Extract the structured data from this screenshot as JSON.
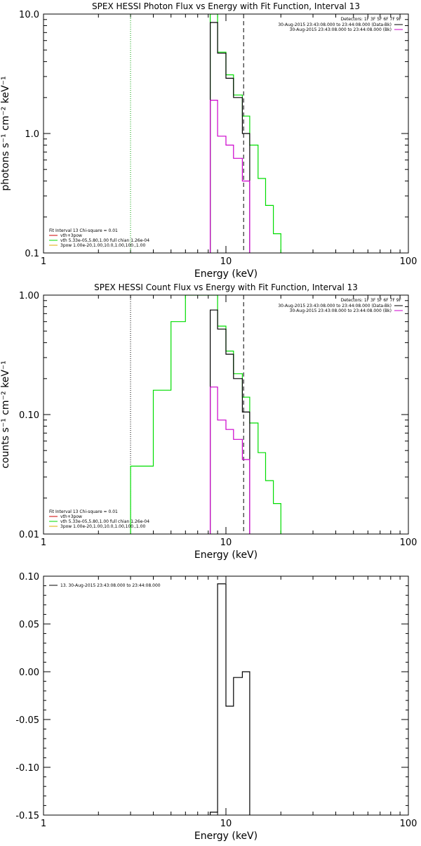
{
  "chart_data": [
    {
      "type": "line",
      "title": "SPEX HESSI Photon Flux vs Energy with Fit Function, Interval 13",
      "xlabel": "Energy (keV)",
      "ylabel": "photons s⁻¹ cm⁻² keV⁻¹",
      "xscale": "log",
      "yscale": "log",
      "xlim": [
        1,
        100
      ],
      "ylim": [
        0.1,
        10
      ],
      "xticks": [
        {
          "v": 1,
          "label": "1"
        },
        {
          "v": 10,
          "label": "10"
        },
        {
          "v": 100,
          "label": "100"
        }
      ],
      "yticks": [
        {
          "v": 0.1,
          "label": "0.1"
        },
        {
          "v": 1,
          "label": "1.0"
        },
        {
          "v": 10,
          "label": "10.0"
        }
      ],
      "vline_dotted": 3.0,
      "vline_dotted_color": "#00a000",
      "vline_dashed": 12.5,
      "legend_top_right": {
        "header": "Detectors: 1F 3F 5F 6F 7F 9F",
        "entries": [
          {
            "label": "30-Aug-2015 23:43:08.000 to 23:44:08.000 (Data-Bk)",
            "color": "#000000"
          },
          {
            "label": "30-Aug-2015 23:43:08.000 to 23:44:08.000 (Bk)",
            "color": "#cc00cc"
          }
        ]
      },
      "legend_bottom_left": {
        "header": "Fit Interval 13   Chi-square = 0.01",
        "entries": [
          {
            "label": "vth+3pow",
            "color": "#cc0000"
          },
          {
            "label": "vth 5.33e-05,5.80,1.00  full chian 1.26e-04",
            "color": "#00dd00"
          },
          {
            "label": "3pow 1.00e-20,1.00,10.0,1.00,100.,1.00",
            "color": "#ddaa00"
          }
        ]
      },
      "series": [
        {
          "color": "#00dd00",
          "edges": [
            8.2,
            9.0,
            10.0,
            11.0,
            12.3,
            13.5,
            15.0,
            16.5,
            18.2,
            20.0
          ],
          "values": [
            10,
            4.8,
            3.1,
            2.1,
            1.4,
            0.8,
            0.42,
            0.25,
            0.145
          ]
        },
        {
          "color": "#000000",
          "edges": [
            8.2,
            9.0,
            10.0,
            11.0,
            12.3,
            13.5
          ],
          "values": [
            8.5,
            4.7,
            2.9,
            2.0,
            1.0
          ]
        },
        {
          "color": "#cc00cc",
          "edges": [
            8.2,
            9.0,
            10.0,
            11.0,
            12.3,
            13.5
          ],
          "values": [
            1.9,
            0.95,
            0.8,
            0.62,
            0.4
          ]
        }
      ]
    },
    {
      "type": "line",
      "title": "SPEX HESSI Count Flux vs Energy with Fit Function, Interval 13",
      "xlabel": "Energy (keV)",
      "ylabel": "counts s⁻¹ cm⁻² keV⁻¹",
      "xscale": "log",
      "yscale": "log",
      "xlim": [
        1,
        100
      ],
      "ylim": [
        0.01,
        1
      ],
      "xticks": [
        {
          "v": 1,
          "label": "1"
        },
        {
          "v": 10,
          "label": "10"
        },
        {
          "v": 100,
          "label": "100"
        }
      ],
      "yticks": [
        {
          "v": 0.01,
          "label": "0.01"
        },
        {
          "v": 0.1,
          "label": "0.10"
        },
        {
          "v": 1,
          "label": "1.00"
        }
      ],
      "vline_dotted": 3.0,
      "vline_dotted_color": "#000000",
      "vline_dashed": 12.5,
      "legend_top_right": {
        "header": "Detectors: 1F 3F 5F 6F 7F 9F",
        "entries": [
          {
            "label": "30-Aug-2015 23:43:08.000 to 23:44:08.000 (Data-Bk)",
            "color": "#000000"
          },
          {
            "label": "30-Aug-2015 23:43:08.000 to 23:44:08.000 (Bk)",
            "color": "#cc00cc"
          }
        ]
      },
      "legend_bottom_left": {
        "header": "Fit Interval 13   Chi-square = 0.01",
        "entries": [
          {
            "label": "vth+3pow",
            "color": "#cc0000"
          },
          {
            "label": "vth 5.33e-05,5.80,1.00  full chian 1.26e-04",
            "color": "#00dd00"
          },
          {
            "label": "3pow 1.00e-20,1.00,10.0,1.00,100.,1.00",
            "color": "#ddaa00"
          }
        ]
      },
      "series": [
        {
          "color": "#00dd00",
          "edges": [
            3.0,
            4.0,
            5.0,
            6.0,
            7.0,
            8.2,
            9.0,
            10.0,
            11.0,
            12.3,
            13.5,
            15.0,
            16.5,
            18.2,
            20.0
          ],
          "values": [
            0.037,
            0.16,
            0.6,
            1.2,
            1.2,
            1.2,
            0.55,
            0.34,
            0.22,
            0.14,
            0.085,
            0.048,
            0.028,
            0.018
          ]
        },
        {
          "color": "#000000",
          "edges": [
            8.2,
            9.0,
            10.0,
            11.0,
            12.3,
            13.5
          ],
          "values": [
            0.75,
            0.52,
            0.32,
            0.2,
            0.105
          ]
        },
        {
          "color": "#cc00cc",
          "edges": [
            8.2,
            9.0,
            10.0,
            11.0,
            12.3,
            13.5
          ],
          "values": [
            0.17,
            0.09,
            0.075,
            0.062,
            0.042
          ]
        }
      ]
    },
    {
      "type": "line",
      "title": "",
      "xlabel": "Energy (keV)",
      "ylabel": "",
      "xscale": "log",
      "yscale": "linear",
      "xlim": [
        1,
        100
      ],
      "ylim": [
        -0.15,
        0.1
      ],
      "xticks": [
        {
          "v": 1,
          "label": "1"
        },
        {
          "v": 10,
          "label": "10"
        },
        {
          "v": 100,
          "label": "100"
        }
      ],
      "yticks": [
        {
          "v": 0.1,
          "label": "0.10"
        },
        {
          "v": 0.05,
          "label": "0.05"
        },
        {
          "v": 0,
          "label": "0.00"
        },
        {
          "v": -0.05,
          "label": "-0.05"
        },
        {
          "v": -0.1,
          "label": "-0.10"
        },
        {
          "v": -0.15,
          "label": "-0.15"
        }
      ],
      "legend_top_left": {
        "entries": [
          {
            "label": "13. 30-Aug-2015 23:43:08.000 to 23:44:08.000",
            "color": "#000000"
          }
        ]
      },
      "series": [
        {
          "color": "#000000",
          "edges": [
            8.2,
            9.0,
            10.0,
            11.0,
            12.3,
            13.5
          ],
          "values": [
            -0.147,
            0.092,
            -0.036,
            -0.006,
            0.0
          ]
        }
      ]
    }
  ]
}
